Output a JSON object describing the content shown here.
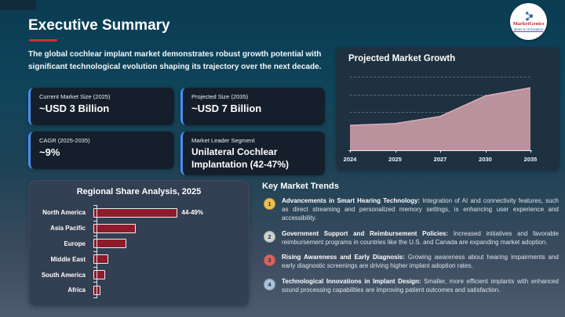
{
  "header": {
    "title": "Executive Summary",
    "intro": "The global cochlear implant market demonstrates robust growth potential with significant technological evolution shaping its trajectory over the next decade.",
    "accent_red": "#cb2f2f"
  },
  "logo": {
    "name": "MarketGenics",
    "tagline": "Ideas to Innovation"
  },
  "stats": [
    {
      "label": "Current Market Size (2025)",
      "value": "~USD 3 Billion"
    },
    {
      "label": "Projected Size (2035)",
      "value": "~USD 7 Billion"
    },
    {
      "label": "CAGR (2025-2035)",
      "value": "~9%"
    },
    {
      "label": "Market Leader Segment",
      "value": "Unilateral Cochlear Implantation (42-47%)"
    }
  ],
  "card_accent_color": "#4a8df0",
  "chart_data": [
    {
      "type": "area",
      "title": "Projected Market Growth",
      "x": [
        "2024",
        "2025",
        "2027",
        "2030",
        "2035"
      ],
      "values": [
        2.8,
        3.0,
        3.8,
        6.1,
        7.0
      ],
      "ylim": [
        0,
        8.5
      ],
      "grid": true,
      "gridlines": 5,
      "x_spacing": "equal",
      "fill_color": "#c89aa6",
      "line_color": "#dcb3bd",
      "note": "no y-axis labels shown; values estimated in USD Billion from stat cards (~3B in 2025, ~7B in 2035)"
    },
    {
      "type": "bar",
      "orientation": "horizontal",
      "title": "Regional Share Analysis, 2025",
      "categories": [
        "North America",
        "Asia Pacific",
        "Europe",
        "Middle East",
        "South America",
        "Africa"
      ],
      "values": [
        46.5,
        18.5,
        14.5,
        6.5,
        5,
        3
      ],
      "data_labels": [
        "44-49%",
        "",
        "",
        "",
        "",
        ""
      ],
      "xlim": [
        0,
        48
      ],
      "bar_color": "#8e1b2b",
      "note": "only North America bar is labeled (44-49%); other values estimated from bar lengths"
    }
  ],
  "trends": {
    "title": "Key Market Trends",
    "items": [
      {
        "num": "1",
        "color": "#eebf4d",
        "bold": "Advancements in Smart Hearing Technology:",
        "text": "Integration of AI and connectivity features, such as direct streaming and personalized memory settings, is enhancing user experience and accessibility."
      },
      {
        "num": "2",
        "color": "#ccd3cc",
        "bold": "Government Support and Reimbursement Policies:",
        "text": "Increased initiatives and favorable reimbursement programs in countries like the U.S. and Canada are expanding market adoption."
      },
      {
        "num": "3",
        "color": "#d9655e",
        "bold": "Rising Awareness and Early Diagnosis:",
        "text": "Growing awareness about hearing impairments and early diagnostic screenings are driving higher implant adoption rates."
      },
      {
        "num": "4",
        "color": "#a9c3d8",
        "bold": "Technological Innovations in Implant Design:",
        "text": "Smaller, more efficient implants with enhanced sound processing capabilities are improving patient outcomes and satisfaction."
      }
    ]
  }
}
